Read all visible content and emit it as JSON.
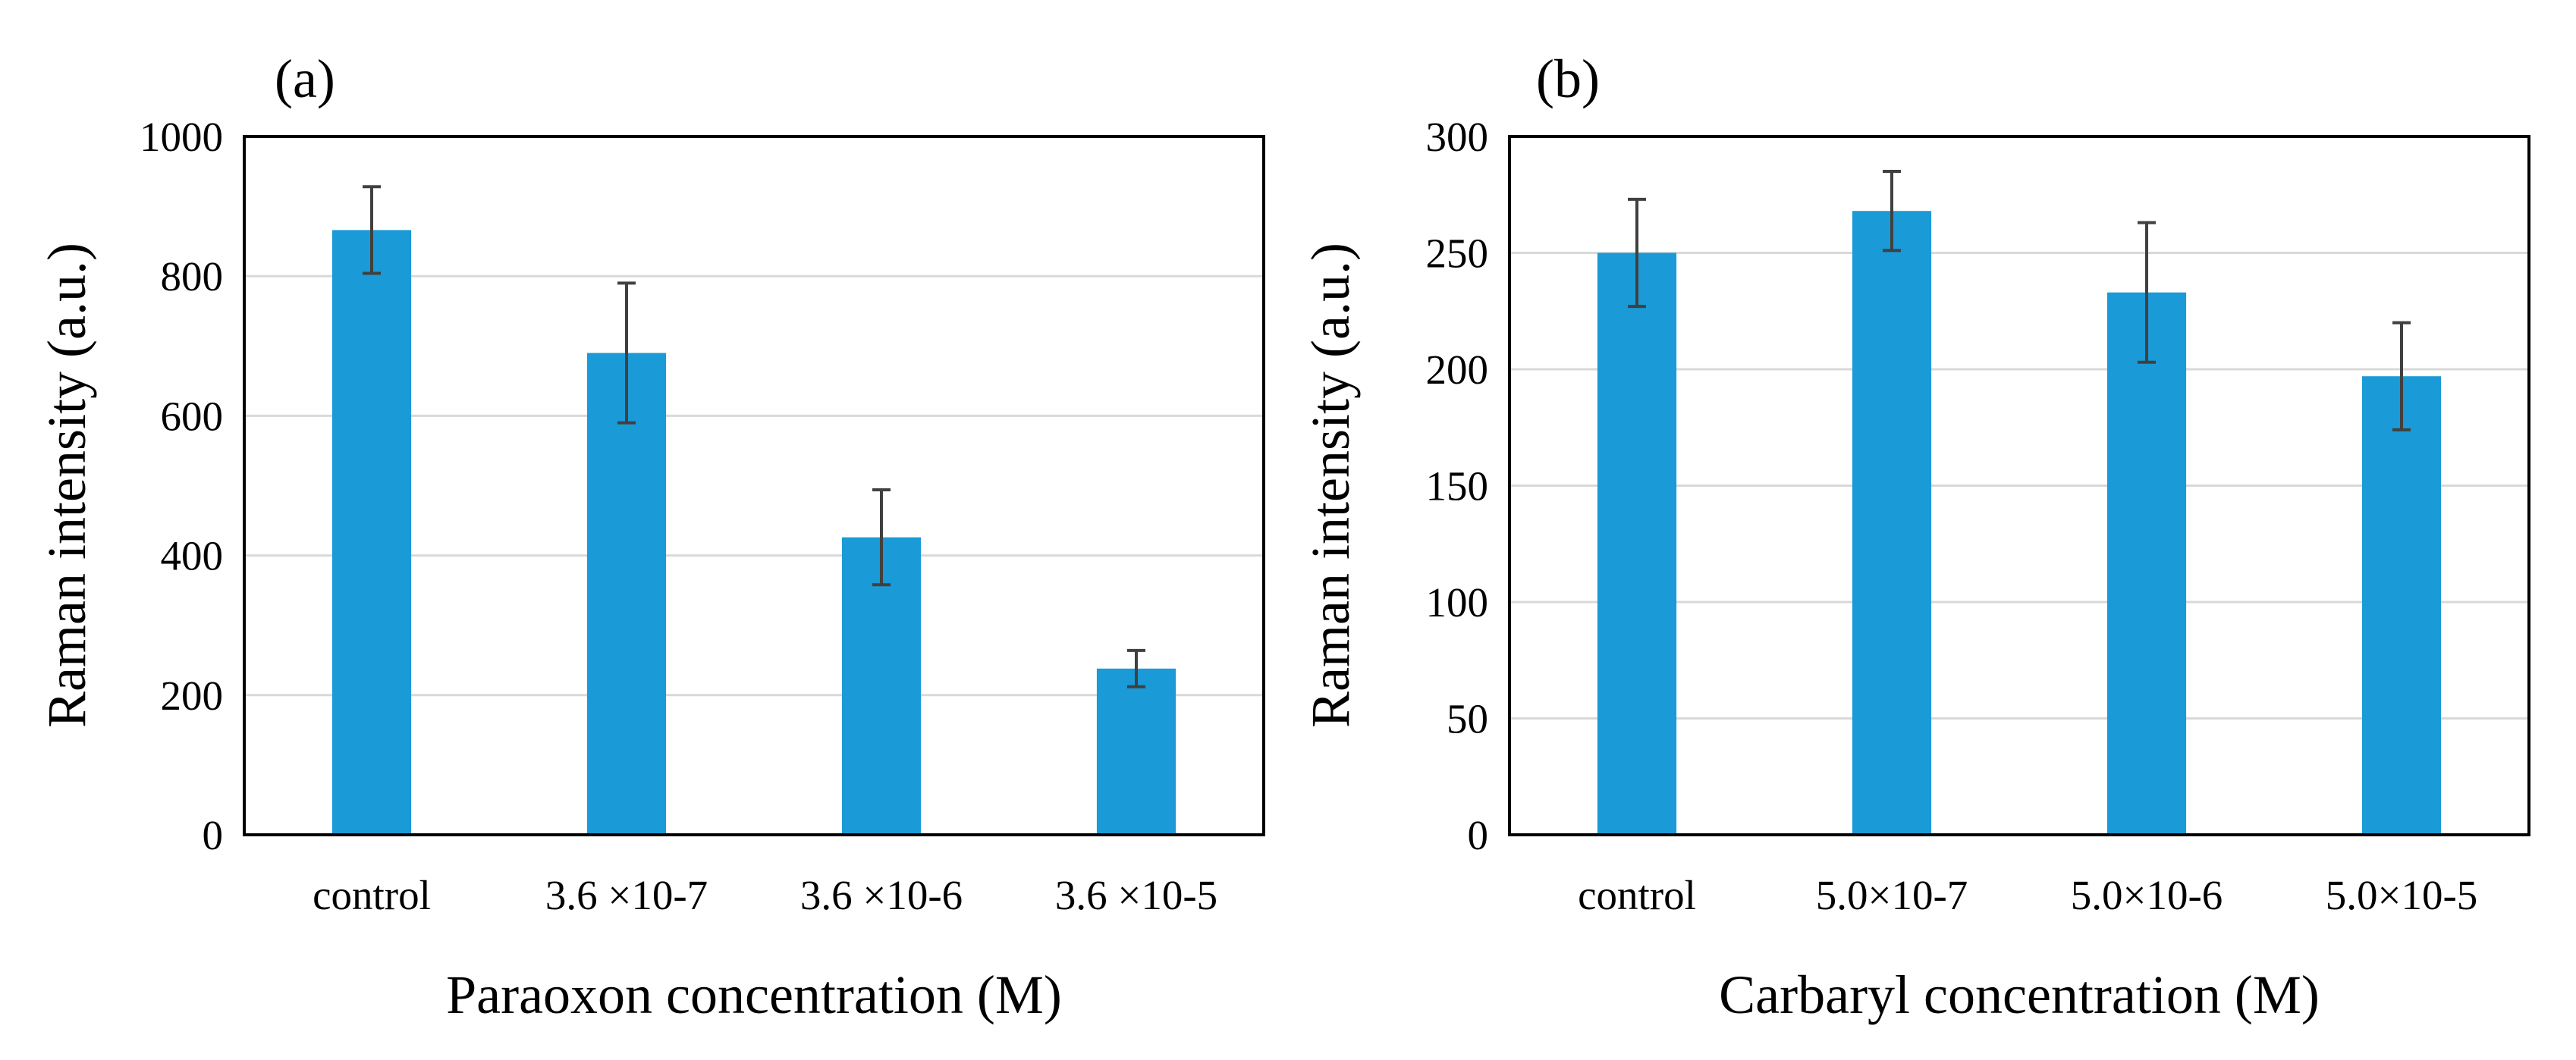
{
  "chart_data": [
    {
      "type": "bar",
      "panel_label": "(a)",
      "categories": [
        "control",
        "3.6 ×10-7",
        "3.6 ×10-6",
        "3.6 ×10-5"
      ],
      "values": [
        866,
        690,
        426,
        238
      ],
      "errors": [
        62,
        100,
        68,
        26
      ],
      "ylim": [
        0,
        1000
      ],
      "yticks": [
        0,
        200,
        400,
        600,
        800,
        1000
      ],
      "ylabel": "Raman intensity (a.u.)",
      "xlabel": "Paraoxon concentration (M)",
      "color": "#1a9ad6",
      "error_color": "#404040",
      "grid": true
    },
    {
      "type": "bar",
      "panel_label": "(b)",
      "categories": [
        "control",
        "5.0×10-7",
        "5.0×10-6",
        "5.0×10-5"
      ],
      "values": [
        250,
        268,
        233,
        197
      ],
      "errors": [
        23,
        17,
        30,
        23
      ],
      "ylim": [
        0,
        300
      ],
      "yticks": [
        0,
        50,
        100,
        150,
        200,
        250,
        300
      ],
      "ylabel": "Raman intensity (a.u.)",
      "xlabel": "Carbaryl concentration (M)",
      "color": "#1a9ad6",
      "error_color": "#404040",
      "grid": true
    }
  ]
}
